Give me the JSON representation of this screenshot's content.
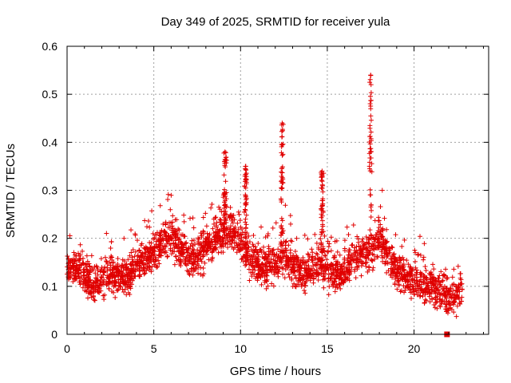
{
  "chart_data": {
    "type": "scatter",
    "title": "Day 349 of 2025, SRMTID for receiver yula",
    "xlabel": "GPS time / hours",
    "ylabel": "SRMTID / TECUs",
    "xlim": [
      0,
      24.3
    ],
    "ylim": [
      0,
      0.6
    ],
    "xticks": [
      0,
      5,
      10,
      15,
      20
    ],
    "xtick_labels": [
      "0",
      "5",
      "10",
      "15",
      "20"
    ],
    "yticks": [
      0,
      0.1,
      0.2,
      0.3,
      0.4,
      0.5,
      0.6
    ],
    "ytick_labels": [
      "0",
      "0.1",
      "0.2",
      "0.3",
      "0.4",
      "0.5",
      "0.6"
    ],
    "grid": true,
    "marker": "plus",
    "color": "#e00000",
    "trend": [
      [
        0.0,
        0.14
      ],
      [
        0.5,
        0.14
      ],
      [
        1.0,
        0.12
      ],
      [
        1.5,
        0.1
      ],
      [
        2.0,
        0.11
      ],
      [
        2.5,
        0.13
      ],
      [
        3.0,
        0.12
      ],
      [
        3.5,
        0.12
      ],
      [
        4.0,
        0.14
      ],
      [
        4.5,
        0.16
      ],
      [
        5.0,
        0.17
      ],
      [
        5.5,
        0.19
      ],
      [
        6.0,
        0.2
      ],
      [
        6.5,
        0.18
      ],
      [
        7.0,
        0.16
      ],
      [
        7.5,
        0.16
      ],
      [
        8.0,
        0.18
      ],
      [
        8.5,
        0.2
      ],
      [
        9.0,
        0.21
      ],
      [
        9.5,
        0.22
      ],
      [
        10.0,
        0.19
      ],
      [
        10.5,
        0.16
      ],
      [
        11.0,
        0.14
      ],
      [
        11.5,
        0.14
      ],
      [
        12.0,
        0.15
      ],
      [
        12.5,
        0.16
      ],
      [
        13.0,
        0.14
      ],
      [
        13.5,
        0.13
      ],
      [
        14.0,
        0.13
      ],
      [
        14.5,
        0.15
      ],
      [
        15.0,
        0.13
      ],
      [
        15.5,
        0.13
      ],
      [
        16.0,
        0.13
      ],
      [
        16.5,
        0.16
      ],
      [
        17.0,
        0.16
      ],
      [
        17.5,
        0.17
      ],
      [
        18.0,
        0.2
      ],
      [
        18.5,
        0.16
      ],
      [
        19.0,
        0.13
      ],
      [
        19.5,
        0.12
      ],
      [
        20.0,
        0.11
      ],
      [
        20.5,
        0.1
      ],
      [
        21.0,
        0.1
      ],
      [
        21.5,
        0.09
      ],
      [
        22.0,
        0.07
      ],
      [
        22.5,
        0.08
      ],
      [
        22.8,
        0.09
      ]
    ],
    "spikes": [
      {
        "x": 9.1,
        "peak": 0.38
      },
      {
        "x": 10.3,
        "peak": 0.35
      },
      {
        "x": 12.4,
        "peak": 0.44
      },
      {
        "x": 14.7,
        "peak": 0.34
      },
      {
        "x": 17.5,
        "peak": 0.54
      }
    ],
    "time_range_hours": [
      0,
      22.8
    ],
    "outlier_points": [
      {
        "x": 21.9,
        "y": 0.0
      }
    ]
  }
}
